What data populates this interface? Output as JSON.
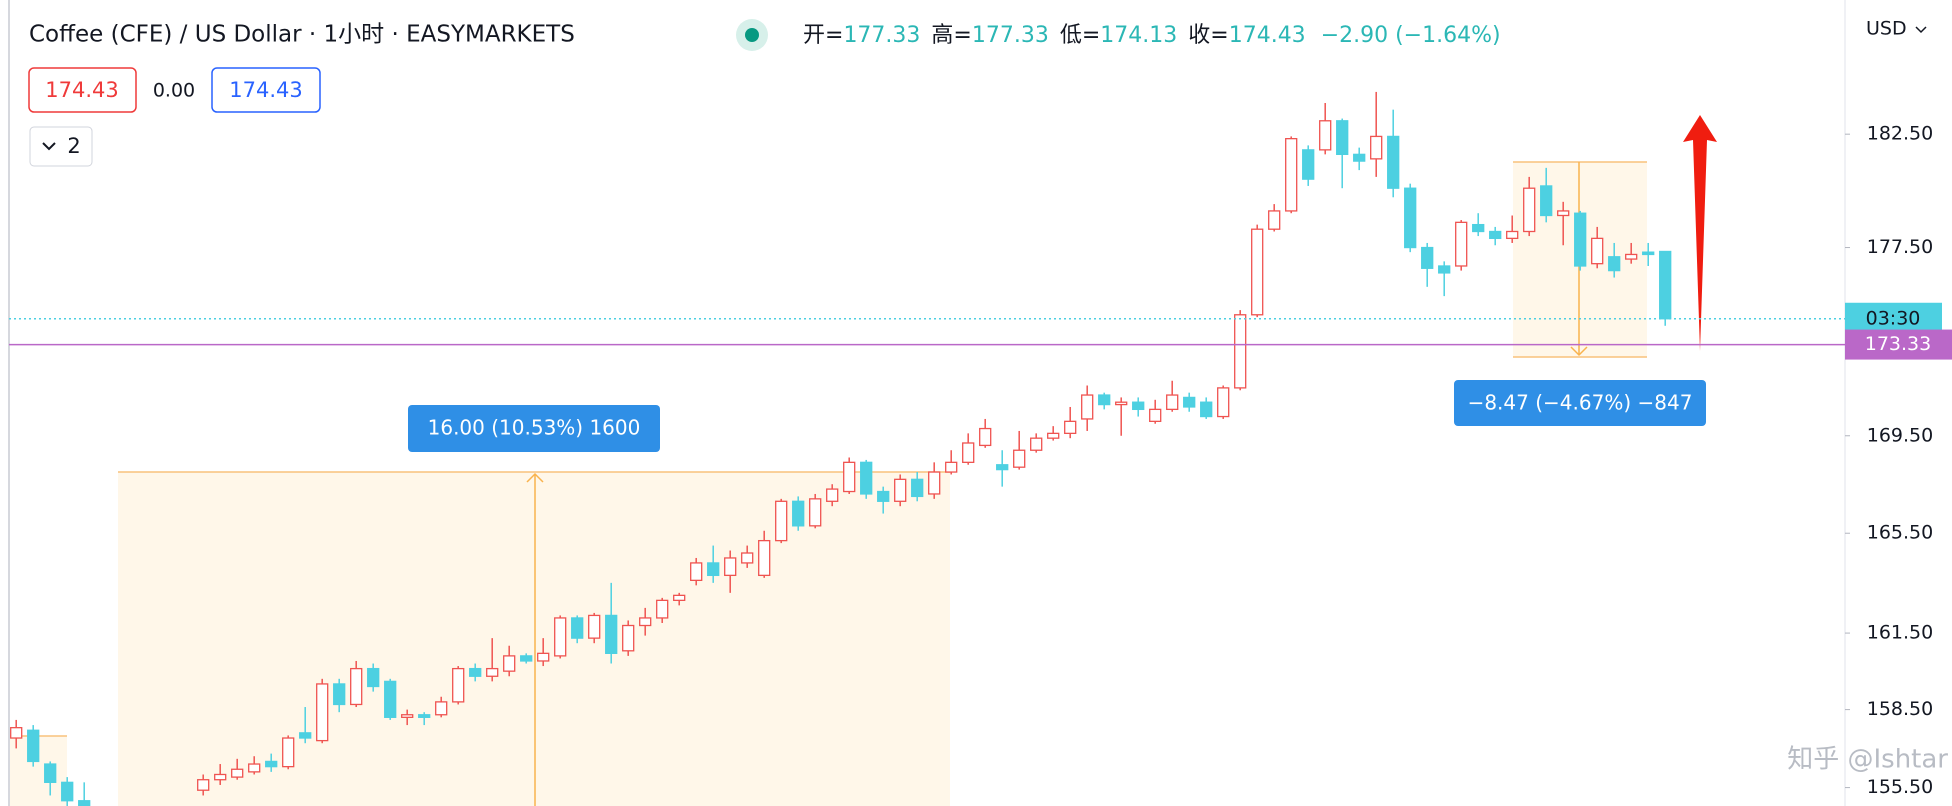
{
  "chart_data": {
    "type": "candlestick",
    "title": "Coffee (CFE) / US Dollar · 1小时 · EASYMARKETS",
    "ohlc_legend": [
      {
        "label": "开=",
        "value": 177.33
      },
      {
        "label": "高=",
        "value": 177.33
      },
      {
        "label": "低=",
        "value": 174.13
      },
      {
        "label": "收=",
        "value": 174.43
      }
    ],
    "change": "−2.90 (−1.64%)",
    "bid": "174.43",
    "spread": "0.00",
    "ask": "174.43",
    "indicator_count": "2",
    "currency": "USD",
    "countdown": "03:30",
    "horizontal_line": 173.33,
    "measures": [
      {
        "label": "16.00 (10.53%) 1600"
      },
      {
        "label": "−8.47 (−4.67%) −847"
      }
    ],
    "watermark": "知乎 @Ishtar",
    "log_scale": true,
    "grid": false,
    "up_color": "#ef5350",
    "down_color": "#4dd0e1",
    "line_color": "#ba68c8",
    "ylim": [
      154.8,
      188.6
    ],
    "yticks": [
      {
        "value": 182.5,
        "label": "182.50"
      },
      {
        "value": 177.5,
        "label": "177.50"
      },
      {
        "value": 169.5,
        "label": "169.50"
      },
      {
        "value": 165.5,
        "label": "165.50"
      },
      {
        "value": 161.5,
        "label": "161.50"
      },
      {
        "value": 158.5,
        "label": "158.50"
      },
      {
        "value": 155.5,
        "label": "155.50"
      }
    ],
    "open": [
      157.4,
      157.7,
      156.4,
      155.7,
      155.0,
      null,
      null,
      null,
      null,
      null,
      null,
      155.4,
      155.8,
      155.9,
      156.1,
      156.5,
      156.3,
      157.6,
      157.3,
      159.5,
      158.7,
      160.1,
      159.6,
      158.2,
      158.3,
      158.3,
      158.8,
      160.1,
      159.8,
      160.0,
      160.6,
      160.4,
      160.6,
      162.1,
      161.3,
      162.2,
      160.8,
      161.8,
      162.1,
      162.8,
      163.6,
      164.3,
      163.8,
      164.3,
      163.8,
      165.2,
      166.8,
      165.8,
      166.8,
      167.2,
      168.4,
      167.2,
      166.8,
      167.7,
      167.1,
      168.0,
      168.4,
      169.1,
      168.3,
      168.2,
      168.9,
      169.4,
      169.6,
      170.2,
      171.2,
      170.8,
      170.9,
      170.1,
      170.6,
      171.1,
      170.9,
      170.3,
      171.5,
      174.6,
      178.3,
      179.1,
      181.8,
      181.8,
      183.1,
      181.6,
      181.4,
      182.4,
      180.1,
      177.5,
      176.7,
      176.7,
      178.5,
      178.2,
      177.9,
      178.2,
      180.2,
      178.9,
      179.0,
      176.8,
      177.1,
      177.0,
      177.3,
      177.33
    ],
    "high": [
      158.1,
      157.9,
      156.5,
      155.9,
      155.7,
      null,
      null,
      null,
      null,
      null,
      null,
      156.0,
      156.4,
      156.6,
      156.7,
      156.8,
      157.5,
      158.6,
      159.7,
      159.7,
      160.4,
      160.3,
      159.7,
      158.5,
      158.4,
      159.0,
      160.2,
      160.3,
      161.3,
      161.0,
      160.7,
      161.3,
      162.2,
      162.2,
      162.3,
      163.5,
      162.0,
      162.5,
      162.9,
      163.1,
      164.5,
      165.0,
      164.8,
      165.0,
      165.6,
      166.9,
      167.0,
      167.1,
      167.5,
      168.6,
      168.5,
      167.4,
      167.9,
      168.0,
      168.4,
      168.9,
      169.6,
      170.2,
      168.9,
      169.7,
      169.6,
      169.9,
      170.7,
      171.6,
      171.3,
      171.1,
      171.1,
      171.0,
      171.8,
      171.3,
      171.1,
      171.6,
      174.8,
      178.5,
      179.4,
      182.4,
      182.0,
      183.9,
      183.2,
      181.9,
      184.4,
      183.6,
      180.3,
      177.7,
      176.9,
      178.7,
      179.0,
      178.4,
      178.9,
      180.6,
      181.0,
      179.5,
      179.1,
      178.4,
      177.7,
      177.7,
      177.7,
      177.33
    ],
    "low": [
      157.0,
      156.3,
      155.2,
      154.5,
      154.0,
      null,
      null,
      null,
      null,
      null,
      null,
      155.2,
      155.6,
      155.8,
      156.0,
      156.1,
      156.2,
      157.2,
      157.2,
      158.4,
      158.6,
      159.2,
      158.1,
      157.9,
      157.9,
      158.2,
      158.7,
      159.6,
      159.6,
      159.8,
      160.3,
      160.2,
      160.5,
      161.1,
      161.1,
      160.3,
      160.6,
      161.4,
      161.9,
      162.6,
      163.4,
      163.5,
      163.1,
      164.1,
      163.7,
      165.1,
      165.6,
      165.7,
      166.6,
      167.1,
      166.9,
      166.3,
      166.6,
      166.8,
      166.9,
      167.9,
      168.3,
      169.0,
      167.4,
      168.1,
      168.8,
      169.3,
      169.4,
      169.7,
      170.6,
      169.5,
      170.3,
      170.0,
      170.5,
      170.5,
      170.2,
      170.2,
      171.4,
      174.5,
      178.2,
      179.0,
      180.2,
      181.6,
      180.1,
      180.9,
      180.6,
      179.7,
      177.3,
      175.8,
      175.4,
      176.5,
      178.0,
      177.6,
      177.7,
      178.0,
      178.6,
      177.6,
      176.5,
      176.6,
      176.2,
      176.8,
      176.7,
      174.13
    ],
    "close": [
      157.8,
      156.5,
      155.7,
      155.0,
      154.3,
      null,
      null,
      null,
      null,
      null,
      null,
      155.8,
      156.0,
      156.2,
      156.4,
      156.3,
      157.4,
      157.4,
      159.5,
      158.7,
      160.1,
      159.4,
      158.2,
      158.3,
      158.2,
      158.8,
      160.1,
      159.8,
      160.1,
      160.6,
      160.4,
      160.7,
      162.1,
      161.3,
      162.2,
      160.7,
      161.8,
      162.1,
      162.8,
      163.0,
      164.3,
      163.8,
      164.5,
      164.7,
      165.2,
      166.8,
      165.8,
      166.9,
      167.3,
      168.4,
      167.1,
      166.8,
      167.7,
      167.0,
      168.0,
      168.4,
      169.2,
      169.8,
      168.1,
      168.9,
      169.4,
      169.6,
      170.1,
      171.2,
      170.8,
      170.9,
      170.6,
      170.6,
      171.2,
      170.7,
      170.3,
      171.5,
      174.6,
      178.3,
      179.1,
      182.3,
      180.5,
      183.1,
      181.6,
      181.3,
      182.4,
      180.1,
      177.5,
      176.6,
      176.4,
      178.6,
      178.2,
      177.9,
      178.2,
      180.1,
      178.9,
      179.1,
      176.7,
      177.9,
      176.5,
      177.2,
      177.2,
      174.43
    ]
  }
}
